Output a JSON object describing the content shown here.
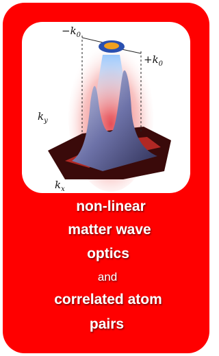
{
  "figure": {
    "labels": {
      "minus_k0": {
        "base": "−k",
        "sub": "0"
      },
      "plus_k0": {
        "base": "+k",
        "sub": "0"
      },
      "ky": {
        "base": "k",
        "sub": "y"
      },
      "kx": {
        "base": "k",
        "sub": "x"
      }
    }
  },
  "caption": {
    "lines_top": [
      "non-linear",
      "matter wave",
      "optics"
    ],
    "connector": "and",
    "lines_bottom": [
      "correlated atom",
      "pairs"
    ]
  }
}
